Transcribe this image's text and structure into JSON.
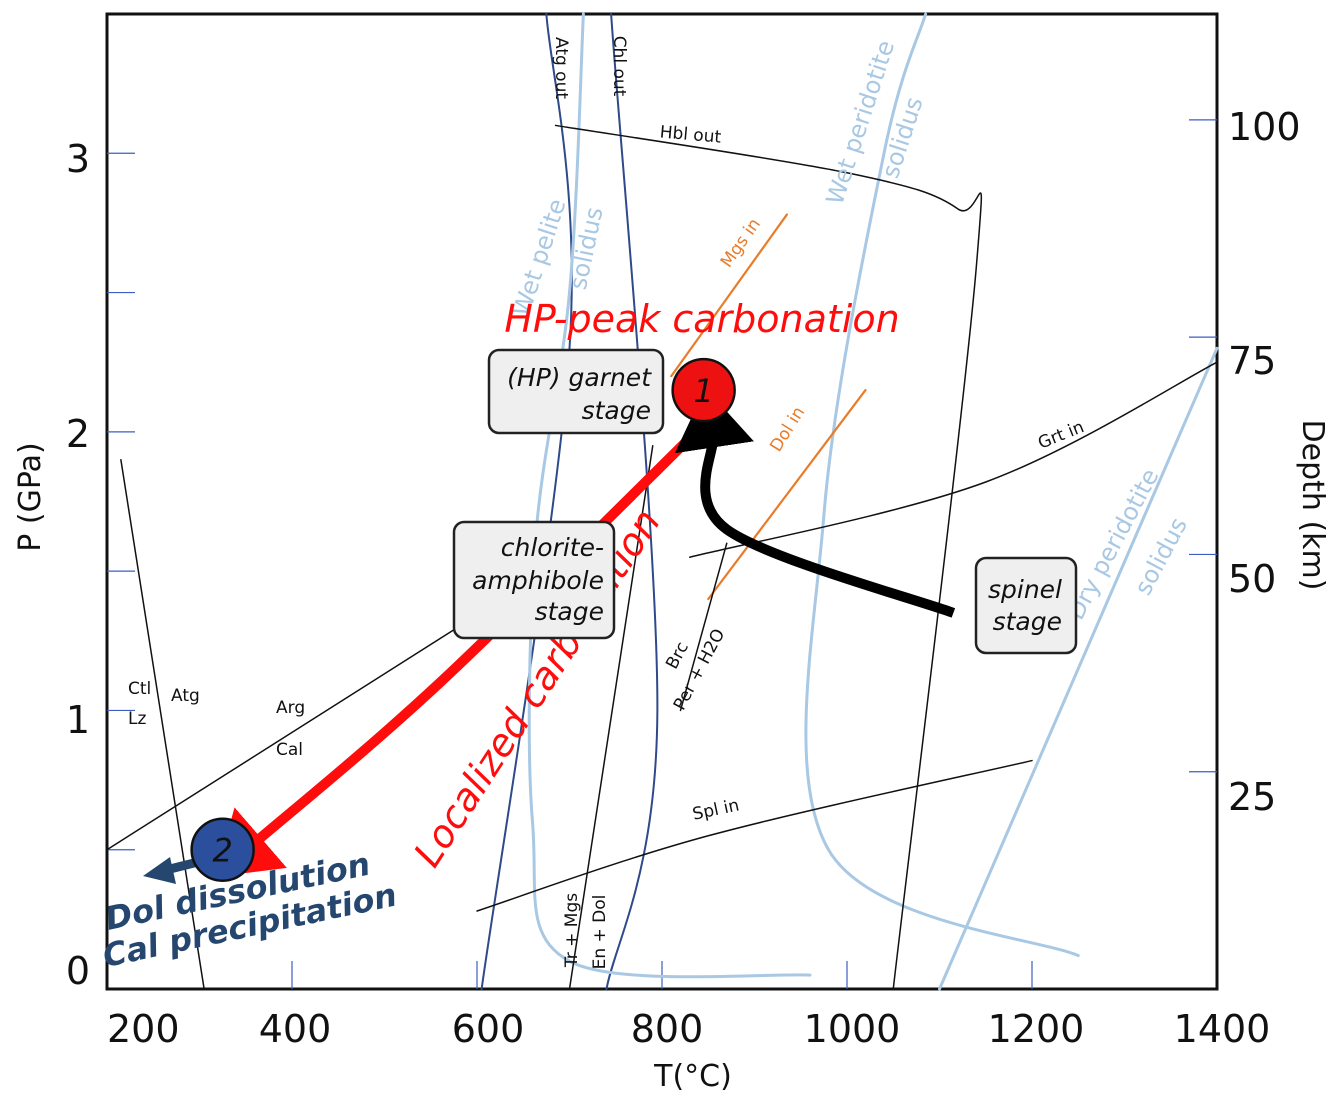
{
  "chart_data": {
    "type": "phase-diagram",
    "xlabel": "T(°C)",
    "ylabel_left": "P (GPa)",
    "ylabel_right": "Depth (km)",
    "xlim": [
      200,
      1400
    ],
    "ylim": [
      0,
      3.5
    ],
    "x_ticks": [
      200,
      400,
      600,
      800,
      1000,
      1200,
      1400
    ],
    "y_ticks": [
      0,
      1,
      2,
      3
    ],
    "depth_ticks": [
      25,
      50,
      75,
      100
    ],
    "curves": {
      "atg_out": {
        "label": "Atg out",
        "pts": [
          [
            605,
            0
          ],
          [
            700,
            2.3
          ],
          [
            675,
            3.5
          ]
        ]
      },
      "chl_out": {
        "label": "Chl out",
        "pts": [
          [
            740,
            0
          ],
          [
            795,
            1.0
          ],
          [
            745,
            3.5
          ]
        ]
      },
      "wet_pelite": {
        "label_1": "Wet pelite",
        "label_2": "solidus",
        "pts": [
          [
            960,
            0.05
          ],
          [
            700,
            0.1
          ],
          [
            660,
            0.6
          ],
          [
            663,
            1.6
          ],
          [
            700,
            2.5
          ],
          [
            715,
            3.5
          ]
        ]
      },
      "wet_peridotite": {
        "label_1": "Wet peridotite",
        "label_2": "solidus",
        "pts": [
          [
            1250,
            0.12
          ],
          [
            980,
            0.5
          ],
          [
            975,
            1.7
          ],
          [
            1040,
            3.0
          ],
          [
            1085,
            3.5
          ]
        ]
      },
      "dry_peridotite": {
        "label_1": "Dry peridotite",
        "label_2": "solidus",
        "pts": [
          [
            1100,
            0
          ],
          [
            1400,
            2.3
          ]
        ]
      },
      "hbl_out": {
        "label": "Hbl out",
        "pts": [
          [
            1050,
            0
          ],
          [
            1140,
            2.6
          ],
          [
            1120,
            2.8
          ],
          [
            1000,
            2.93
          ],
          [
            685,
            3.1
          ]
        ]
      },
      "grt_in": {
        "label": "Grt in",
        "pts": [
          [
            830,
            1.55
          ],
          [
            1150,
            1.82
          ],
          [
            1400,
            2.25
          ]
        ]
      },
      "spl_in": {
        "label": "Spl in",
        "pts": [
          [
            600,
            0.28
          ],
          [
            850,
            0.55
          ],
          [
            1200,
            0.82
          ]
        ]
      },
      "mgs_in": {
        "label": "Mgs in",
        "pts": [
          [
            810,
            2.2
          ],
          [
            935,
            2.78
          ]
        ]
      },
      "dol_in": {
        "label": "Dol in",
        "pts": [
          [
            850,
            1.4
          ],
          [
            1020,
            2.15
          ]
        ]
      },
      "brc": {
        "label_1": "Brc",
        "label_2": "Per + H2O",
        "pts": [
          [
            820,
            1.0
          ],
          [
            870,
            1.6
          ]
        ]
      },
      "ctl_atg": {
        "label_1": "Ctl",
        "label_2": "Lz",
        "label_3": "Atg",
        "pts": [
          [
            215,
            1.9
          ],
          [
            305,
            0
          ]
        ]
      },
      "arg_cal": {
        "label_1": "Arg",
        "label_2": "Cal",
        "pts": [
          [
            200,
            0.5
          ],
          [
            580,
            1.3
          ]
        ]
      },
      "tr_mgs": {
        "label_1": "Tr + Mgs",
        "label_2": "En + Dol",
        "pts": [
          [
            700,
            0
          ],
          [
            790,
            1.95
          ]
        ]
      }
    },
    "points": [
      {
        "label": "1",
        "T": 845,
        "P": 2.15,
        "color": "#ee1111"
      },
      {
        "label": "2",
        "T": 325,
        "P": 0.5,
        "color": "#2b4f9c"
      }
    ],
    "paths": {
      "localized": {
        "label": "Localized carbonation",
        "color": "#ff0d0d",
        "pts": [
          [
            843,
            2.02
          ],
          [
            560,
            1.1
          ],
          [
            358,
            0.52
          ]
        ]
      },
      "hp_peak": {
        "label": "HP-peak carbonation",
        "color": "#ff0d0d"
      },
      "spinel_path": {
        "color": "#000000",
        "pts": [
          [
            1115,
            1.35
          ],
          [
            870,
            1.65
          ],
          [
            855,
            1.98
          ]
        ]
      },
      "dol_dissolution": {
        "label_1": "Dol dissolution",
        "label_2": "Cal precipitation",
        "color": "#25476f"
      }
    },
    "stages": {
      "garnet": {
        "line_1": "(HP) garnet",
        "line_2": "stage"
      },
      "chlorite": {
        "line_1": "chlorite-",
        "line_2": "amphibole",
        "line_3": "stage"
      },
      "spinel": {
        "line_1": "spinel",
        "line_2": "stage"
      }
    },
    "colors": {
      "thin": "#111111",
      "dark_blue": "#2e4a8a",
      "light_blue": "#a8c8e4",
      "orange": "#e87c2a"
    }
  }
}
